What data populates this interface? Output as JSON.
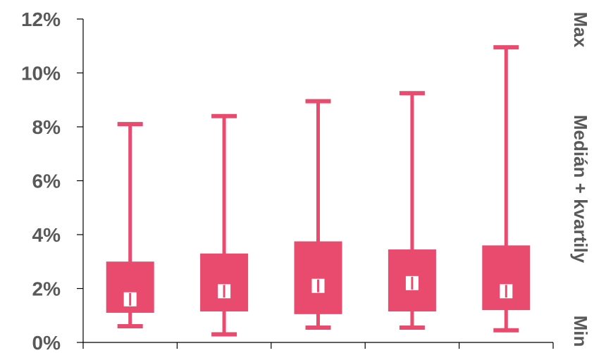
{
  "chart_data": {
    "type": "box",
    "color": "#E94B6E",
    "ylim": [
      0,
      12
    ],
    "y_ticks": [
      0,
      2,
      4,
      6,
      8,
      10,
      12
    ],
    "y_tick_labels": [
      "0%",
      "2%",
      "4%",
      "6%",
      "8%",
      "10%",
      "12%"
    ],
    "grid": false,
    "side_labels": {
      "max": "Max",
      "median_quartiles": "Medián + kvartily",
      "min": "Min"
    },
    "boxes": [
      {
        "min": 0.6,
        "q1": 1.1,
        "median": 1.6,
        "q3": 3.0,
        "max": 8.1
      },
      {
        "min": 0.3,
        "q1": 1.15,
        "median": 1.9,
        "q3": 3.3,
        "max": 8.4
      },
      {
        "min": 0.55,
        "q1": 1.05,
        "median": 2.1,
        "q3": 3.75,
        "max": 8.95
      },
      {
        "min": 0.55,
        "q1": 1.15,
        "median": 2.2,
        "q3": 3.45,
        "max": 9.25
      },
      {
        "min": 0.45,
        "q1": 1.2,
        "median": 1.9,
        "q3": 3.6,
        "max": 10.95
      }
    ]
  }
}
